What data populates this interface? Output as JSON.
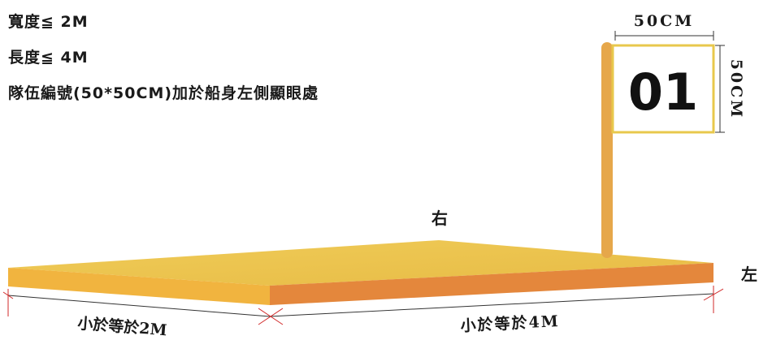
{
  "specs": {
    "width": "寬度≦ 2M",
    "length": "長度≦ 4M",
    "number": "隊伍編號(50*50CM)加於船身左側顯眼處"
  },
  "sides": {
    "right": "右",
    "left": "左"
  },
  "dimensions": {
    "bottom_left": "小於等於2M",
    "bottom_right": "小於等於4M",
    "flag_width": "50CM",
    "flag_height": "50CM"
  },
  "flag": {
    "number": "01"
  },
  "colors": {
    "board_top": "#ECC34C",
    "board_front_left": "#F0B840",
    "board_front_right": "#E3873C",
    "pole": "#E6A74A",
    "flag_border": "#E8C84C",
    "dimension_line": "#333333",
    "dimension_tick": "#D12A2A"
  }
}
